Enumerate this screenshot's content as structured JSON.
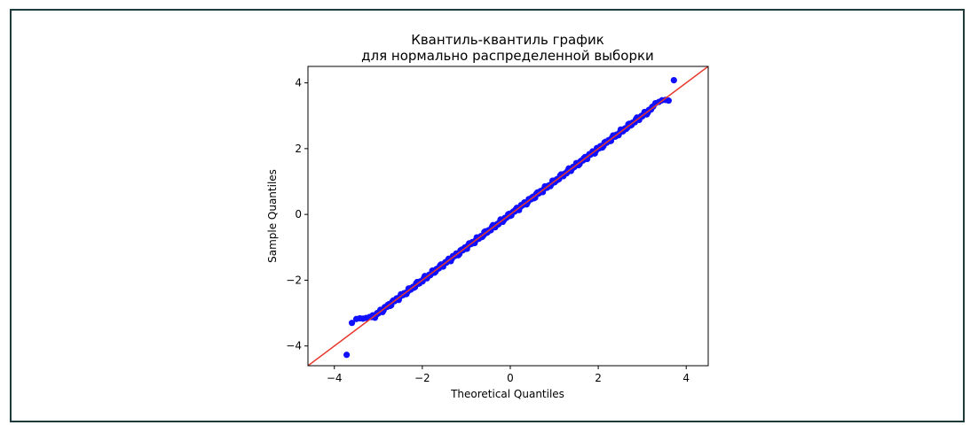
{
  "chart_data": {
    "type": "scatter",
    "title_lines": [
      "Квантиль-квантиль график",
      "для нормально распределенной выборки"
    ],
    "xlabel": "Theoretical Quantiles",
    "ylabel": "Sample Quantiles",
    "xlim": [
      -4.6,
      4.5
    ],
    "ylim": [
      -4.6,
      4.5
    ],
    "xticks": [
      -4,
      -2,
      0,
      2,
      4
    ],
    "yticks": [
      -4,
      -2,
      0,
      2,
      4
    ],
    "grid": false,
    "reference_line": {
      "slope": 1,
      "intercept": 0,
      "color": "#e8372a"
    },
    "series": [
      {
        "marker_color": "#1010ff",
        "dense_range": [
          -3.15,
          3.25
        ],
        "tail_points": [
          [
            -3.72,
            -4.27
          ],
          [
            -3.6,
            -3.3
          ],
          [
            -3.5,
            -3.18
          ],
          [
            -3.42,
            -3.16
          ],
          [
            -3.35,
            -3.17
          ],
          [
            -3.28,
            -3.15
          ],
          [
            -3.2,
            -3.12
          ],
          [
            3.3,
            3.38
          ],
          [
            3.38,
            3.42
          ],
          [
            3.45,
            3.47
          ],
          [
            3.53,
            3.48
          ],
          [
            3.6,
            3.46
          ],
          [
            3.72,
            4.08
          ]
        ]
      }
    ]
  }
}
